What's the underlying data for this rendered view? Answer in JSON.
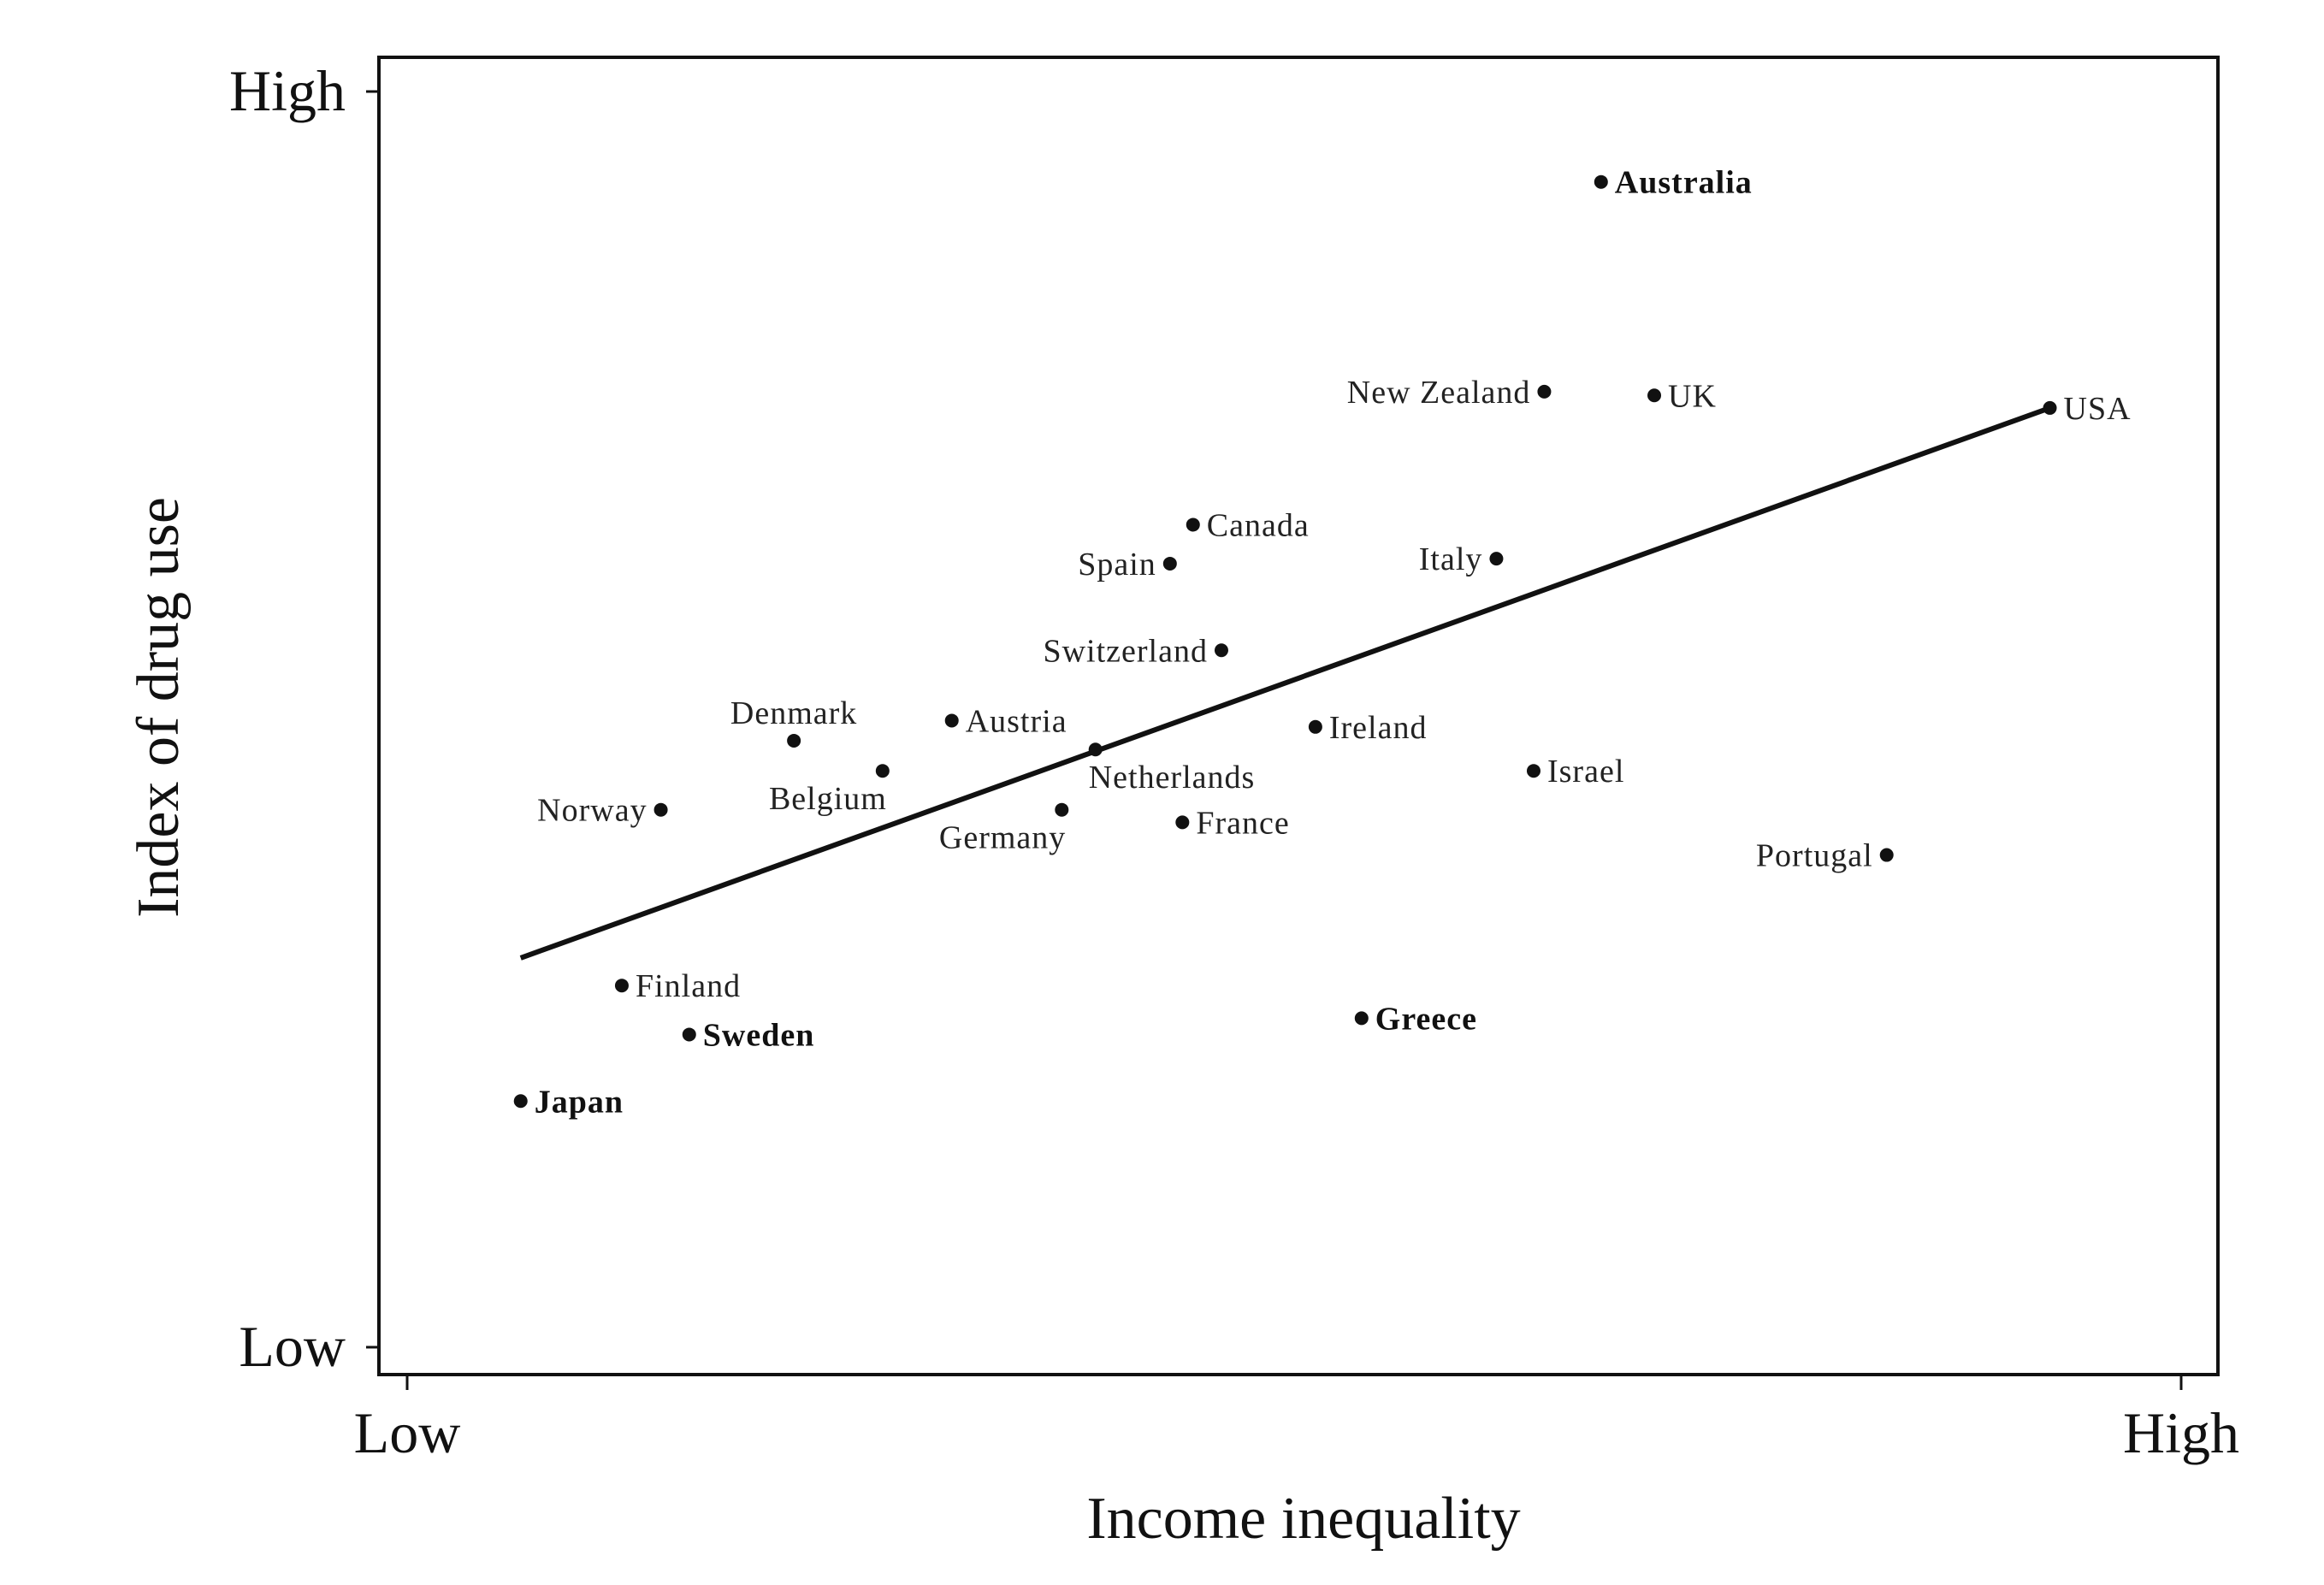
{
  "chart_data": {
    "type": "scatter",
    "title": "",
    "xlabel": "Income inequality",
    "ylabel": "Index of drug use",
    "xlim": [
      0,
      100
    ],
    "ylim": [
      0,
      100
    ],
    "x_ticks": [
      {
        "value": 0,
        "label": "Low"
      },
      {
        "value": 100,
        "label": "High"
      }
    ],
    "y_ticks": [
      {
        "value": 0,
        "label": "Low"
      },
      {
        "value": 100,
        "label": "High"
      }
    ],
    "grid": false,
    "points": [
      {
        "label": "Australia",
        "x": 67.3,
        "y": 92.8,
        "anchor": "right",
        "bold": true
      },
      {
        "label": "New Zealand",
        "x": 64.1,
        "y": 76.1,
        "anchor": "left",
        "bold": false
      },
      {
        "label": "UK",
        "x": 70.3,
        "y": 75.8,
        "anchor": "right",
        "bold": false
      },
      {
        "label": "USA",
        "x": 92.6,
        "y": 74.8,
        "anchor": "right",
        "bold": false
      },
      {
        "label": "Canada",
        "x": 44.3,
        "y": 65.5,
        "anchor": "right",
        "bold": false
      },
      {
        "label": "Spain",
        "x": 43.0,
        "y": 62.4,
        "anchor": "left",
        "bold": false
      },
      {
        "label": "Italy",
        "x": 61.4,
        "y": 62.8,
        "anchor": "left",
        "bold": false
      },
      {
        "label": "Switzerland",
        "x": 45.9,
        "y": 55.5,
        "anchor": "left",
        "bold": false
      },
      {
        "label": "Denmark",
        "x": 21.8,
        "y": 48.3,
        "anchor": "above",
        "bold": false
      },
      {
        "label": "Austria",
        "x": 30.7,
        "y": 49.9,
        "anchor": "right",
        "bold": false
      },
      {
        "label": "Belgium",
        "x": 26.8,
        "y": 45.9,
        "anchor": "below-left",
        "bold": false
      },
      {
        "label": "Netherlands",
        "x": 38.8,
        "y": 47.6,
        "anchor": "below-right",
        "bold": false
      },
      {
        "label": "Ireland",
        "x": 51.2,
        "y": 49.4,
        "anchor": "right",
        "bold": false
      },
      {
        "label": "Israel",
        "x": 63.5,
        "y": 45.9,
        "anchor": "right",
        "bold": false
      },
      {
        "label": "Norway",
        "x": 14.3,
        "y": 42.8,
        "anchor": "left",
        "bold": false
      },
      {
        "label": "Germany",
        "x": 36.9,
        "y": 42.8,
        "anchor": "below-left",
        "bold": false
      },
      {
        "label": "France",
        "x": 43.7,
        "y": 41.8,
        "anchor": "right",
        "bold": false
      },
      {
        "label": "Portugal",
        "x": 83.4,
        "y": 39.2,
        "anchor": "left",
        "bold": false
      },
      {
        "label": "Finland",
        "x": 12.1,
        "y": 28.8,
        "anchor": "right",
        "bold": false
      },
      {
        "label": "Sweden",
        "x": 15.9,
        "y": 24.9,
        "anchor": "right",
        "bold": true
      },
      {
        "label": "Greece",
        "x": 53.8,
        "y": 26.2,
        "anchor": "right",
        "bold": true
      },
      {
        "label": "Japan",
        "x": 6.4,
        "y": 19.6,
        "anchor": "right",
        "bold": true
      }
    ],
    "trend_line": {
      "x": [
        6.4,
        92.6
      ],
      "y": [
        31.0,
        74.8
      ]
    }
  }
}
